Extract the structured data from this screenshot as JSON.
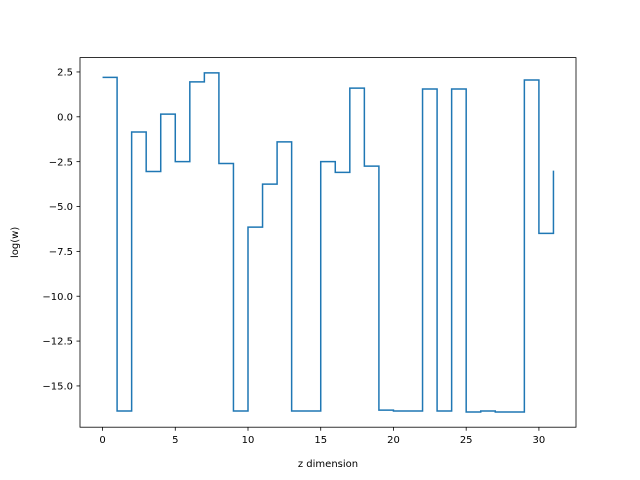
{
  "chart_data": {
    "type": "line",
    "drawstyle": "steps-post",
    "title": "",
    "xlabel": "z dimension",
    "ylabel": "log(w)",
    "xlim": [
      -1.55,
      32.55
    ],
    "ylim": [
      -17.3,
      3.3
    ],
    "xticks": [
      0,
      5,
      10,
      15,
      20,
      25,
      30
    ],
    "yticks": [
      2.5,
      0.0,
      -2.5,
      -5.0,
      -7.5,
      -10.0,
      -12.5,
      -15.0
    ],
    "ytick_labels": [
      "2.5",
      "0.0",
      "−2.5",
      "−5.0",
      "−7.5",
      "−10.0",
      "−12.5",
      "−15.0"
    ],
    "grid": false,
    "line_color": "#1f77b4",
    "series": [
      {
        "x": [
          0,
          1,
          2,
          3,
          4,
          5,
          6,
          7,
          8,
          9,
          10,
          11,
          12,
          13,
          14,
          15,
          16,
          17,
          18,
          19,
          20,
          21,
          22,
          23,
          24,
          25,
          26,
          27,
          28,
          29,
          30,
          31
        ],
        "y": [
          2.2,
          -16.4,
          -0.85,
          -3.05,
          0.15,
          -2.5,
          1.95,
          2.45,
          -2.6,
          -16.4,
          -6.15,
          -3.75,
          -1.4,
          -16.4,
          -16.4,
          -2.5,
          -3.1,
          1.6,
          -2.75,
          -16.35,
          -16.4,
          -16.4,
          1.55,
          -16.4,
          1.55,
          -16.45,
          -16.4,
          -16.45,
          -16.45,
          2.05,
          -6.5,
          -3.0
        ]
      }
    ]
  }
}
